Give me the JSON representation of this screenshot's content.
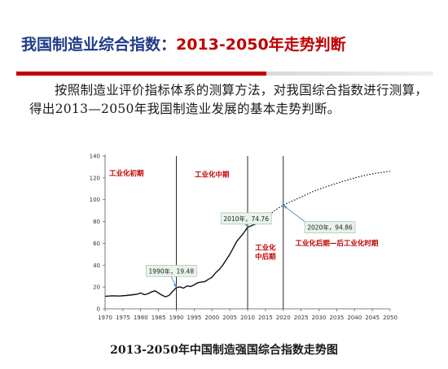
{
  "slide": {
    "title_part1": "我国制造业综合指数：",
    "title_part2": "2013-2050年走势判断",
    "intro": "按照制造业评价指标体系的测算方法，对我国综合指数进行测算，得出2013—2050年我国制造业发展的基本走势判断。",
    "caption": "2013-2050年中国制造强国综合指数走势图"
  },
  "colors": {
    "title_blue": "#1f3c88",
    "title_red": "#c00000",
    "stage_label": "#c00000",
    "callout_fill": "#e8f3ea",
    "arrow": "#5b9bd5"
  },
  "chart_data": {
    "type": "line",
    "title": "",
    "xlabel": "",
    "ylabel": "",
    "xlim": [
      1970,
      2050
    ],
    "ylim": [
      0,
      140
    ],
    "x_ticks": [
      1970,
      1975,
      1980,
      1985,
      1990,
      1995,
      2000,
      2005,
      2010,
      2015,
      2020,
      2025,
      2030,
      2035,
      2040,
      2045,
      2050
    ],
    "y_ticks": [
      0,
      20,
      40,
      60,
      80,
      100,
      120,
      140
    ],
    "grid": false,
    "series": [
      {
        "style": "solid",
        "points": [
          [
            1970,
            11.5
          ],
          [
            1972,
            12
          ],
          [
            1974,
            11.8
          ],
          [
            1976,
            12.3
          ],
          [
            1978,
            13
          ],
          [
            1979,
            13.5
          ],
          [
            1980,
            14.5
          ],
          [
            1981,
            13
          ],
          [
            1982,
            13.8
          ],
          [
            1983,
            15.5
          ],
          [
            1984,
            16.5
          ],
          [
            1985,
            14.5
          ],
          [
            1986,
            12.5
          ],
          [
            1987,
            11
          ],
          [
            1988,
            12.5
          ],
          [
            1989,
            16
          ],
          [
            1990,
            19.48
          ],
          [
            1991,
            20
          ],
          [
            1992,
            19
          ],
          [
            1993,
            21
          ],
          [
            1994,
            20.5
          ],
          [
            1995,
            22
          ],
          [
            1996,
            24
          ],
          [
            1997,
            24.5
          ],
          [
            1998,
            25
          ],
          [
            1999,
            27
          ],
          [
            2000,
            29
          ],
          [
            2001,
            33
          ],
          [
            2002,
            36
          ],
          [
            2003,
            40
          ],
          [
            2004,
            45
          ],
          [
            2005,
            50
          ],
          [
            2006,
            56
          ],
          [
            2007,
            62
          ],
          [
            2008,
            66
          ],
          [
            2009,
            70
          ],
          [
            2010,
            74.76
          ],
          [
            2011,
            76
          ],
          [
            2012,
            77.5
          ],
          [
            2013,
            78.5
          ]
        ]
      },
      {
        "style": "dotted",
        "points": [
          [
            2013,
            78.5
          ],
          [
            2014,
            80.5
          ],
          [
            2015,
            83
          ],
          [
            2016,
            86
          ],
          [
            2017,
            88.5
          ],
          [
            2018,
            91
          ],
          [
            2019,
            93
          ],
          [
            2020,
            94.86
          ],
          [
            2021,
            96.5
          ],
          [
            2022,
            98
          ],
          [
            2023,
            99.5
          ],
          [
            2024,
            101
          ],
          [
            2025,
            102.5
          ],
          [
            2026,
            104
          ],
          [
            2027,
            105.5
          ],
          [
            2028,
            107
          ],
          [
            2029,
            108.3
          ],
          [
            2030,
            109.5
          ],
          [
            2031,
            110.7
          ],
          [
            2032,
            111.8
          ],
          [
            2033,
            113
          ],
          [
            2034,
            114
          ],
          [
            2035,
            115
          ],
          [
            2036,
            116
          ],
          [
            2037,
            117
          ],
          [
            2038,
            118
          ],
          [
            2039,
            119
          ],
          [
            2040,
            120
          ],
          [
            2041,
            120.8
          ],
          [
            2042,
            121.6
          ],
          [
            2043,
            122.4
          ],
          [
            2044,
            123
          ],
          [
            2045,
            123.6
          ],
          [
            2046,
            124.2
          ],
          [
            2047,
            124.8
          ],
          [
            2048,
            125.2
          ],
          [
            2049,
            125.6
          ],
          [
            2050,
            126
          ]
        ]
      }
    ],
    "stage_dividers": [
      1990,
      2010,
      2020
    ],
    "stage_labels": [
      {
        "text": "工业化初期",
        "x": 1976,
        "y": 122
      },
      {
        "text": "工业化中期",
        "x": 2000,
        "y": 121
      },
      {
        "text": "工业化\n中后期",
        "x": 2015,
        "y": 54
      },
      {
        "text": "工业化后期—后工业化时期",
        "x": 2035,
        "y": 58
      }
    ],
    "annotations": [
      {
        "text": "1990年，19.48",
        "point": [
          1990,
          19.48
        ],
        "box": [
          1981.5,
          40
        ]
      },
      {
        "text": "2010年，74.76",
        "point": [
          2010,
          74.76
        ],
        "box": [
          2002.5,
          88
        ]
      },
      {
        "text": "2020年，94.86",
        "point": [
          2020,
          94.86
        ],
        "box": [
          2026,
          80
        ]
      }
    ]
  }
}
